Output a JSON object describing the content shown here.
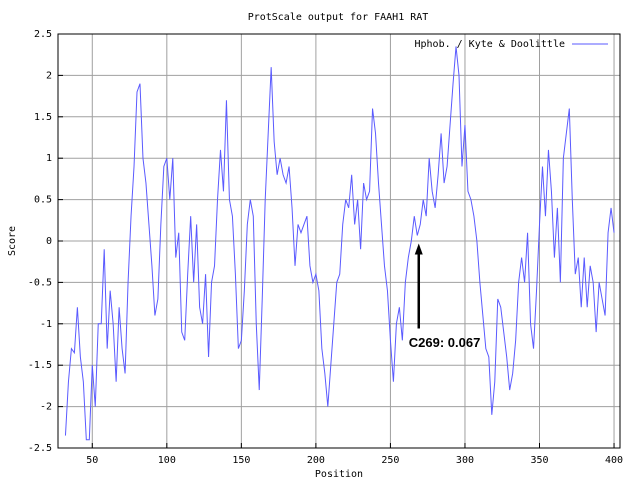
{
  "chart_data": {
    "type": "line",
    "title": "ProtScale output for FAAH1 RAT",
    "x_label": "Position",
    "y_label": "Score",
    "xlim": [
      27,
      404
    ],
    "ylim": [
      -2.5,
      2.5
    ],
    "xticks": [
      50,
      100,
      150,
      200,
      250,
      300,
      350,
      400
    ],
    "yticks": [
      -2.5,
      -2,
      -1.5,
      -1,
      -0.5,
      0,
      0.5,
      1,
      1.5,
      2,
      2.5
    ],
    "grid": true,
    "legend": "top-right",
    "x": [
      32,
      34,
      36,
      38,
      40,
      42,
      44,
      46,
      48,
      50,
      52,
      54,
      56,
      58,
      60,
      62,
      64,
      66,
      68,
      70,
      72,
      74,
      76,
      78,
      80,
      82,
      84,
      86,
      88,
      90,
      92,
      94,
      96,
      98,
      100,
      102,
      104,
      106,
      108,
      110,
      112,
      114,
      116,
      118,
      120,
      122,
      124,
      126,
      128,
      130,
      132,
      134,
      136,
      138,
      140,
      142,
      144,
      146,
      148,
      150,
      152,
      154,
      156,
      158,
      160,
      162,
      164,
      166,
      168,
      170,
      172,
      174,
      176,
      178,
      180,
      182,
      184,
      186,
      188,
      190,
      192,
      194,
      196,
      198,
      200,
      202,
      204,
      206,
      208,
      210,
      212,
      214,
      216,
      218,
      220,
      222,
      224,
      226,
      228,
      230,
      232,
      234,
      236,
      238,
      240,
      242,
      244,
      246,
      248,
      250,
      252,
      254,
      256,
      258,
      260,
      262,
      264,
      266,
      268,
      270,
      272,
      274,
      276,
      278,
      280,
      282,
      284,
      286,
      288,
      290,
      292,
      294,
      296,
      298,
      300,
      302,
      304,
      306,
      308,
      310,
      312,
      314,
      316,
      318,
      320,
      322,
      324,
      326,
      328,
      330,
      332,
      334,
      336,
      338,
      340,
      342,
      344,
      346,
      348,
      350,
      352,
      354,
      356,
      358,
      360,
      362,
      364,
      366,
      368,
      370,
      372,
      374,
      376,
      378,
      380,
      382,
      384,
      386,
      388,
      390,
      392,
      394,
      396,
      398,
      400
    ],
    "series": [
      {
        "name": "Hphob. / Kyte & Doolittle",
        "color": "#5a5aff",
        "values": [
          -2.35,
          -1.7,
          -1.3,
          -1.35,
          -0.8,
          -1.4,
          -1.7,
          -2.4,
          -2.4,
          -1.5,
          -2.0,
          -1.0,
          -1.0,
          -0.1,
          -1.3,
          -0.6,
          -1.0,
          -1.7,
          -0.8,
          -1.3,
          -1.6,
          -0.5,
          0.3,
          0.9,
          1.8,
          1.9,
          1.0,
          0.7,
          0.2,
          -0.3,
          -0.9,
          -0.7,
          0.2,
          0.9,
          1.0,
          0.5,
          1.0,
          -0.2,
          0.1,
          -1.1,
          -1.2,
          -0.4,
          0.3,
          -0.5,
          0.2,
          -0.8,
          -1.0,
          -0.4,
          -1.4,
          -0.5,
          -0.3,
          0.5,
          1.1,
          0.6,
          1.7,
          0.5,
          0.3,
          -0.4,
          -1.3,
          -1.2,
          -0.6,
          0.2,
          0.5,
          0.3,
          -1.0,
          -1.8,
          -0.7,
          0.5,
          1.3,
          2.1,
          1.2,
          0.8,
          1.0,
          0.8,
          0.7,
          0.9,
          0.4,
          -0.3,
          0.2,
          0.1,
          0.2,
          0.3,
          -0.3,
          -0.5,
          -0.4,
          -0.6,
          -1.3,
          -1.6,
          -2.0,
          -1.5,
          -1.0,
          -0.5,
          -0.4,
          0.2,
          0.5,
          0.4,
          0.8,
          0.2,
          0.5,
          -0.1,
          0.7,
          0.5,
          0.6,
          1.6,
          1.3,
          0.7,
          0.2,
          -0.3,
          -0.6,
          -1.2,
          -1.7,
          -1.0,
          -0.8,
          -1.2,
          -0.5,
          -0.2,
          0.0,
          0.3,
          0.067,
          0.2,
          0.5,
          0.3,
          1.0,
          0.6,
          0.4,
          0.8,
          1.3,
          0.7,
          0.9,
          1.4,
          1.9,
          2.35,
          2.0,
          0.9,
          1.4,
          0.6,
          0.5,
          0.3,
          0.0,
          -0.5,
          -0.9,
          -1.3,
          -1.4,
          -2.1,
          -1.7,
          -0.7,
          -0.8,
          -1.1,
          -1.4,
          -1.8,
          -1.6,
          -1.2,
          -0.5,
          -0.2,
          -0.5,
          0.1,
          -1.0,
          -1.3,
          -0.6,
          0.2,
          0.9,
          0.3,
          1.1,
          0.6,
          -0.2,
          0.4,
          -0.5,
          1.0,
          1.3,
          1.6,
          0.5,
          -0.4,
          -0.2,
          -0.8,
          -0.2,
          -0.8,
          -0.3,
          -0.5,
          -1.1,
          -0.5,
          -0.7,
          -0.9,
          0.1,
          0.4,
          0.1
        ]
      }
    ],
    "annotations": [
      {
        "text": "C269: 0.067",
        "x": 269,
        "y": 0.067
      }
    ]
  }
}
